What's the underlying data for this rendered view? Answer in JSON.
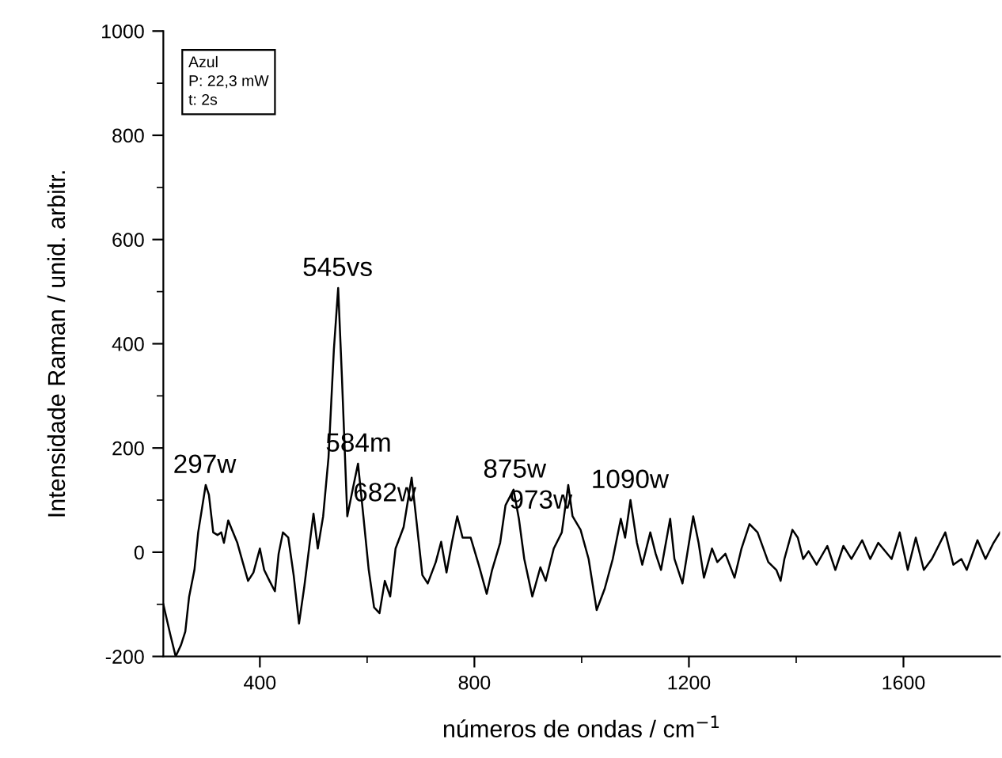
{
  "chart_data": {
    "type": "line",
    "xlabel": "números de ondas / cm$^{−1}$",
    "ylabel": "Intensidade Raman / unid. arbitr.",
    "xlim": [
      220,
      1780
    ],
    "ylim": [
      -200,
      1000
    ],
    "xticks": [
      400,
      800,
      1200,
      1600
    ],
    "yticks": [
      -200,
      0,
      200,
      400,
      600,
      800,
      1000
    ],
    "grid": false,
    "legend": false,
    "marker": "none",
    "line_style": "solid",
    "series": [
      {
        "color": "#000000",
        "x": [
          220,
          233,
          243,
          253,
          261,
          268,
          278,
          285,
          293,
          299,
          305,
          313,
          321,
          328,
          333,
          341,
          348,
          358,
          368,
          378,
          388,
          400,
          408,
          418,
          428,
          435,
          443,
          453,
          463,
          473,
          483,
          493,
          500,
          508,
          518,
          528,
          538,
          546,
          553,
          563,
          573,
          583,
          593,
          603,
          613,
          623,
          633,
          643,
          653,
          668,
          683,
          691,
          703,
          713,
          728,
          738,
          748,
          758,
          768,
          778,
          793,
          808,
          823,
          833,
          848,
          858,
          873,
          883,
          893,
          908,
          923,
          933,
          948,
          963,
          975,
          983,
          998,
          1013,
          1028,
          1043,
          1058,
          1073,
          1081,
          1091,
          1103,
          1113,
          1128,
          1138,
          1148,
          1165,
          1173,
          1188,
          1208,
          1218,
          1228,
          1243,
          1253,
          1268,
          1285,
          1298,
          1313,
          1328,
          1348,
          1363,
          1371,
          1378,
          1393,
          1403,
          1413,
          1423,
          1438,
          1458,
          1473,
          1488,
          1503,
          1523,
          1538,
          1553,
          1578,
          1593,
          1608,
          1623,
          1638,
          1653,
          1678,
          1693,
          1708,
          1718,
          1738,
          1753,
          1768,
          1780
        ],
        "values": [
          -100,
          -158,
          -200,
          -178,
          -152,
          -86,
          -34,
          38,
          90,
          129,
          110,
          38,
          33,
          38,
          18,
          61,
          43,
          18,
          -19,
          -55,
          -39,
          7,
          -34,
          -55,
          -75,
          -3,
          38,
          28,
          -44,
          -137,
          -65,
          18,
          74,
          7,
          69,
          182,
          389,
          507,
          336,
          69,
          120,
          170,
          69,
          -34,
          -106,
          -117,
          -55,
          -85,
          7,
          48,
          143,
          69,
          -44,
          -60,
          -19,
          20,
          -39,
          18,
          69,
          28,
          28,
          -24,
          -80,
          -34,
          18,
          90,
          120,
          64,
          -13,
          -85,
          -29,
          -55,
          7,
          38,
          129,
          69,
          43,
          -13,
          -111,
          -70,
          -13,
          64,
          28,
          100,
          18,
          -24,
          38,
          -3,
          -34,
          64,
          -13,
          -60,
          69,
          18,
          -49,
          7,
          -19,
          -3,
          -49,
          7,
          54,
          38,
          -19,
          -34,
          -55,
          -13,
          43,
          28,
          -13,
          2,
          -24,
          12,
          -34,
          12,
          -13,
          23,
          -13,
          18,
          -13,
          38,
          -34,
          28,
          -34,
          -13,
          38,
          -24,
          -13,
          -34,
          23,
          -13,
          18,
          38
        ]
      }
    ],
    "annotations": [
      {
        "text": "297w",
        "x": 297,
        "y": 129
      },
      {
        "text": "545vs",
        "x": 545,
        "y": 507
      },
      {
        "text": "584m",
        "x": 584,
        "y": 170
      },
      {
        "text": "682w",
        "x": 682,
        "y": 143
      },
      {
        "text": "875w",
        "x": 875,
        "y": 120
      },
      {
        "text": "973w",
        "x": 973,
        "y": 129
      },
      {
        "text": "1090w",
        "x": 1090,
        "y": 100
      },
      "Azul\nP: 22,3 mW\nt: 2s"
    ]
  }
}
